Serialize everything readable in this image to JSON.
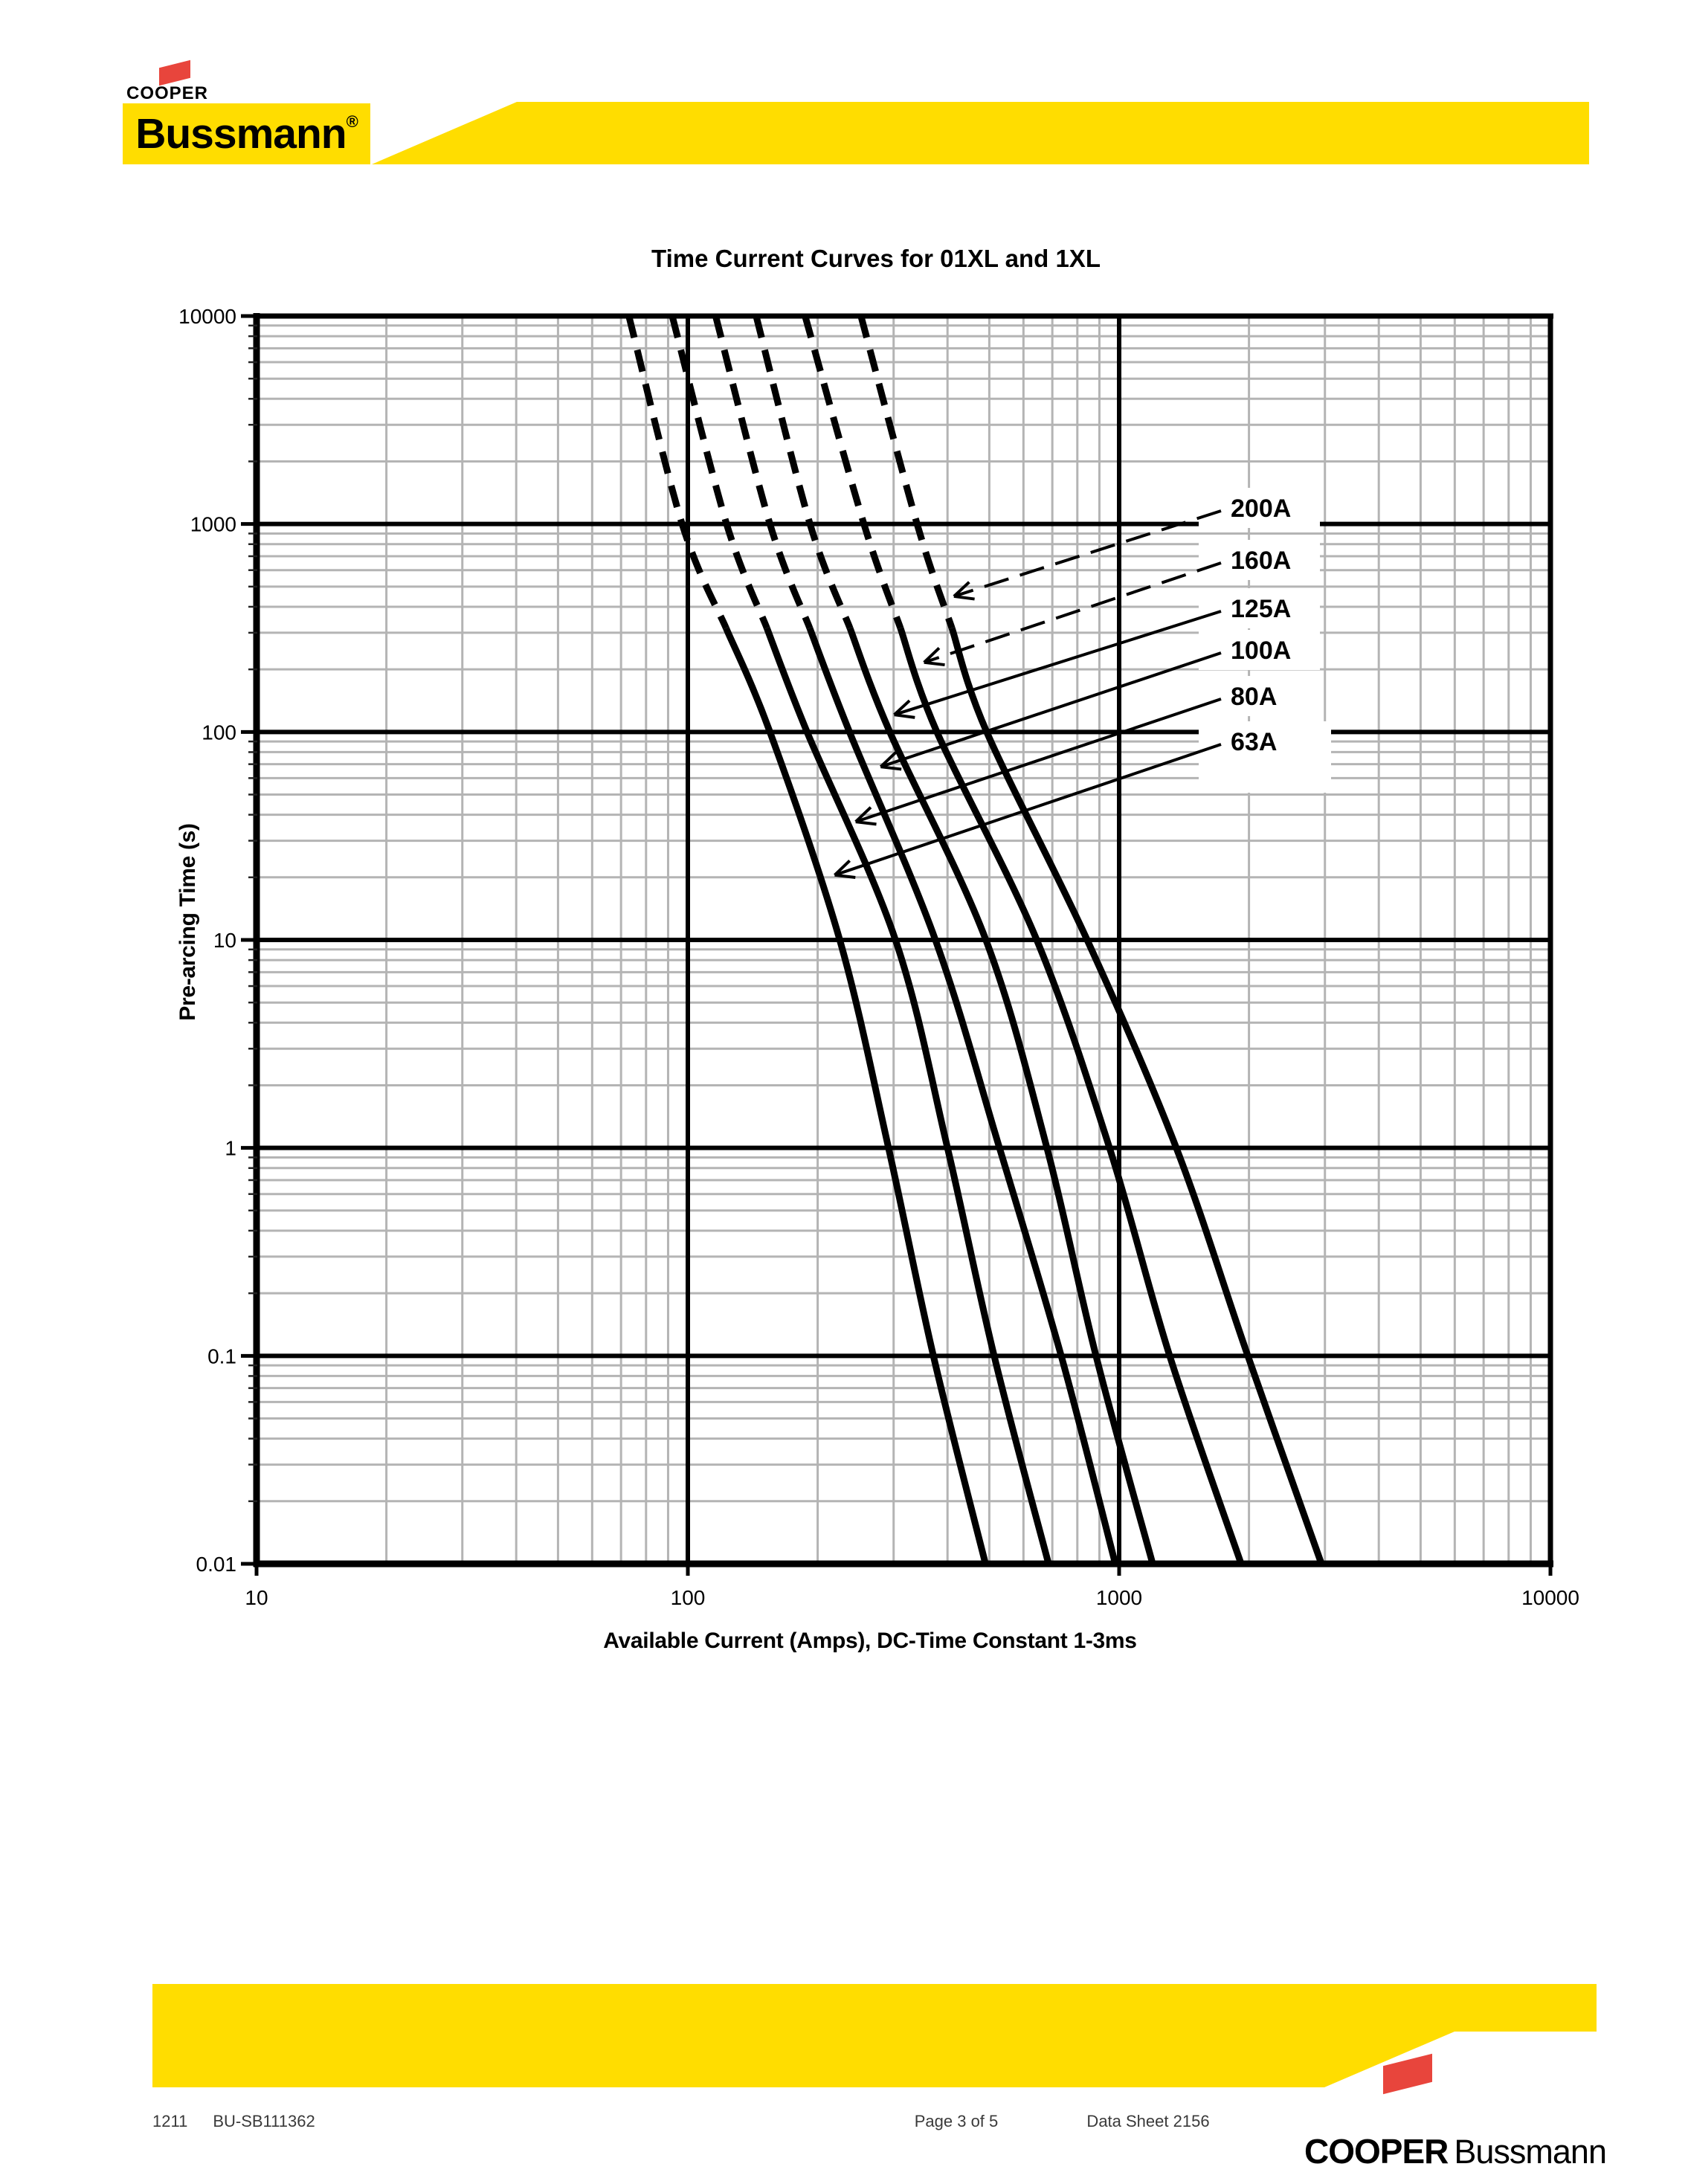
{
  "header": {
    "brand_top": "COOPER",
    "brand_main": "Bussmann",
    "brand_reg": "®"
  },
  "chart_data": {
    "type": "line",
    "title": "Time Current Curves for 01XL and 1XL",
    "xlabel": "Available Current (Amps), DC-Time Constant 1-3ms",
    "ylabel": "Pre-arcing Time (s)",
    "x_axis": {
      "scale": "log",
      "min": 10,
      "max": 10000,
      "tick_labels": [
        "10",
        "100",
        "1000",
        "10000"
      ]
    },
    "y_axis": {
      "scale": "log",
      "min": 0.01,
      "max": 10000,
      "tick_labels": [
        "10000",
        "1000",
        "100",
        "10",
        "1",
        "0.1",
        "0.01"
      ]
    },
    "grid": {
      "minor": true,
      "major": true,
      "legend_position": "inline-labels-with-arrows"
    },
    "times_s": [
      10000,
      1000,
      100,
      10,
      1,
      0.1,
      0.01
    ],
    "series": [
      {
        "name": "63A",
        "currents_a": [
          73,
          97,
          155,
          225,
          292,
          371,
          490
        ],
        "leader": "solid",
        "tip_amps": 219,
        "tip_seconds": 20.5
      },
      {
        "name": "80A",
        "currents_a": [
          92,
          123,
          189,
          303,
          400,
          513,
          686
        ],
        "leader": "solid",
        "tip_amps": 245,
        "tip_seconds": 37
      },
      {
        "name": "100A",
        "currents_a": [
          116,
          155,
          237,
          375,
          528,
          734,
          980
        ],
        "leader": "solid",
        "tip_amps": 280,
        "tip_seconds": 68
      },
      {
        "name": "125A",
        "currents_a": [
          144,
          192,
          294,
          491,
          680,
          884,
          1196
        ],
        "leader": "solid",
        "tip_amps": 301,
        "tip_seconds": 121
      },
      {
        "name": "160A",
        "currents_a": [
          187,
          256,
          378,
          644,
          950,
          1310,
          1918
        ],
        "leader": "dashed",
        "tip_amps": 353,
        "tip_seconds": 216
      },
      {
        "name": "200A",
        "currents_a": [
          252,
          340,
          493,
          843,
          1357,
          1988,
          2945
        ],
        "leader": "dashed",
        "tip_amps": 414,
        "tip_seconds": 449
      }
    ],
    "curve_style": {
      "dashed_above_seconds": 316
    }
  },
  "footer": {
    "code_left": "1211",
    "code_right": "BU-SB111362",
    "page": "Page 3 of 5",
    "datasheet": "Data Sheet 2156",
    "brand_cooper": "COOPER",
    "brand_bussmann": "Bussmann"
  },
  "colors": {
    "brand_yellow": "#FFDD00",
    "brand_red": "#E8453C",
    "grid_minor": "#B4B4B4",
    "grid_major": "#000000"
  }
}
